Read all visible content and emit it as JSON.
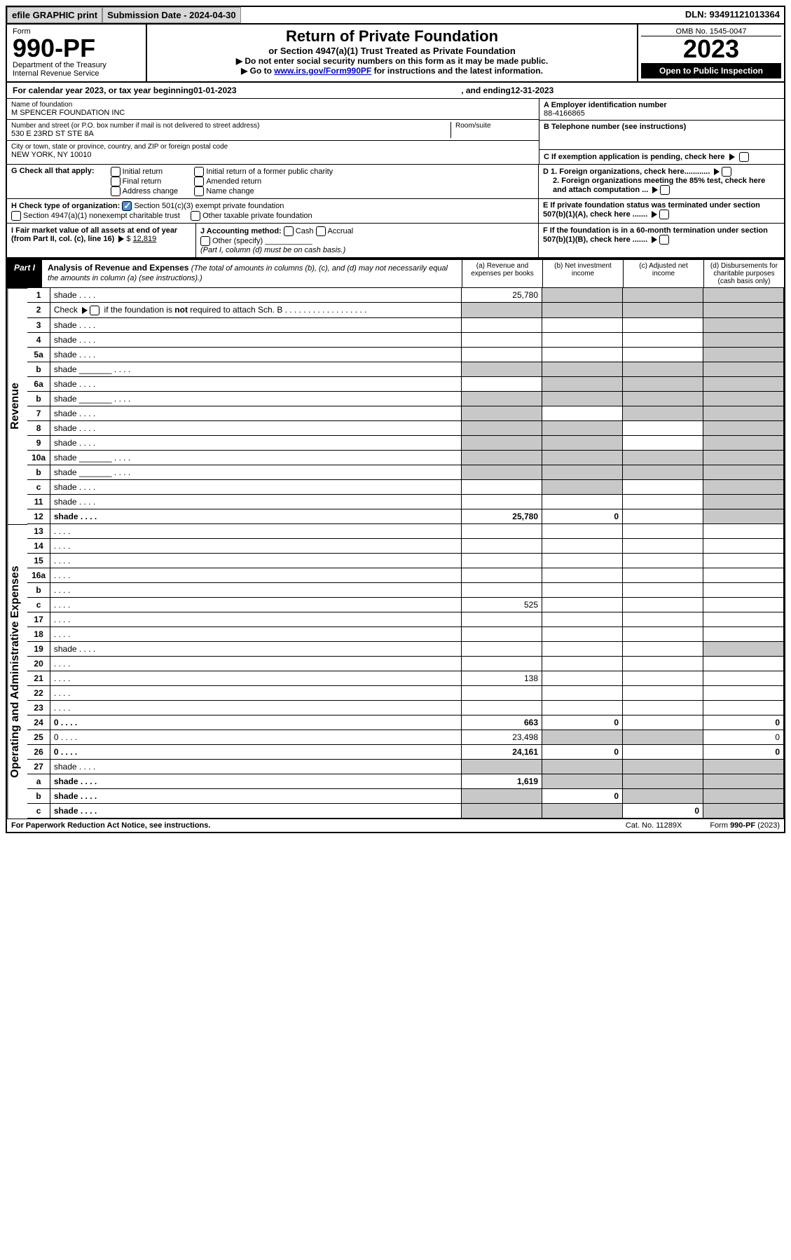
{
  "topbar": {
    "efile": "efile GRAPHIC print",
    "submission_label": "Submission Date - 2024-04-30",
    "dln": "DLN: 93491121013364"
  },
  "head": {
    "form_word": "Form",
    "form_no": "990-PF",
    "dept": "Department of the Treasury",
    "irs": "Internal Revenue Service",
    "title": "Return of Private Foundation",
    "subtitle": "or Section 4947(a)(1) Trust Treated as Private Foundation",
    "instr1": "▶ Do not enter social security numbers on this form as it may be made public.",
    "instr2_pre": "▶ Go to ",
    "instr2_link": "www.irs.gov/Form990PF",
    "instr2_post": " for instructions and the latest information.",
    "omb": "OMB No. 1545-0047",
    "year": "2023",
    "open": "Open to Public Inspection"
  },
  "calendar": {
    "pre": "For calendar year 2023, or tax year beginning ",
    "begin": "01-01-2023",
    "mid": ", and ending ",
    "end": "12-31-2023"
  },
  "entity": {
    "name_label": "Name of foundation",
    "name": "M SPENCER FOUNDATION INC",
    "addr_label": "Number and street (or P.O. box number if mail is not delivered to street address)",
    "addr": "530 E 23RD ST STE 8A",
    "room_label": "Room/suite",
    "city_label": "City or town, state or province, country, and ZIP or foreign postal code",
    "city": "NEW YORK, NY  10010",
    "A_label": "A Employer identification number",
    "A_val": "88-4166865",
    "B_label": "B Telephone number (see instructions)",
    "C_label": "C If exemption application is pending, check here",
    "D1_label": "D 1. Foreign organizations, check here............",
    "D2_label": "2. Foreign organizations meeting the 85% test, check here and attach computation ...",
    "E_label": "E  If private foundation status was terminated under section 507(b)(1)(A), check here .......",
    "F_label": "F  If the foundation is in a 60-month termination under section 507(b)(1)(B), check here .......",
    "G_label": "G Check all that apply:",
    "G_opts": [
      "Initial return",
      "Final return",
      "Address change",
      "Initial return of a former public charity",
      "Amended return",
      "Name change"
    ],
    "H_label": "H Check type of organization:",
    "H_opts": [
      "Section 501(c)(3) exempt private foundation",
      "Section 4947(a)(1) nonexempt charitable trust",
      "Other taxable private foundation"
    ],
    "I_label": "I Fair market value of all assets at end of year (from Part II, col. (c), line 16)",
    "I_val": "12,819",
    "J_label": "J Accounting method:",
    "J_opts": [
      "Cash",
      "Accrual",
      "Other (specify)"
    ],
    "J_note": "(Part I, column (d) must be on cash basis.)"
  },
  "part1": {
    "tag": "Part I",
    "title": "Analysis of Revenue and Expenses",
    "sub": "(The total of amounts in columns (b), (c), and (d) may not necessarily equal the amounts in column (a) (see instructions).)",
    "cols": {
      "a": "(a)   Revenue and expenses per books",
      "b": "(b)   Net investment income",
      "c": "(c)   Adjusted net income",
      "d": "(d)   Disbursements for charitable purposes (cash basis only)"
    }
  },
  "sections": {
    "revenue": "Revenue",
    "opex": "Operating and Administrative Expenses"
  },
  "rows": [
    {
      "n": "1",
      "d": "shade",
      "a": "25,780",
      "b": "shade",
      "c": "shade"
    },
    {
      "n": "2",
      "d": "shade",
      "a": "shade",
      "b": "shade",
      "c": "shade",
      "html": true
    },
    {
      "n": "3",
      "d": "shade",
      "a": "",
      "b": "",
      "c": ""
    },
    {
      "n": "4",
      "d": "shade",
      "a": "",
      "b": "",
      "c": ""
    },
    {
      "n": "5a",
      "d": "shade",
      "a": "",
      "b": "",
      "c": ""
    },
    {
      "n": "b",
      "d": "shade",
      "a": "shade",
      "b": "shade",
      "c": "shade",
      "inset": true
    },
    {
      "n": "6a",
      "d": "shade",
      "a": "",
      "b": "shade",
      "c": "shade"
    },
    {
      "n": "b",
      "d": "shade",
      "a": "shade",
      "b": "shade",
      "c": "shade",
      "inset": true
    },
    {
      "n": "7",
      "d": "shade",
      "a": "shade",
      "b": "",
      "c": "shade"
    },
    {
      "n": "8",
      "d": "shade",
      "a": "shade",
      "b": "shade",
      "c": ""
    },
    {
      "n": "9",
      "d": "shade",
      "a": "shade",
      "b": "shade",
      "c": ""
    },
    {
      "n": "10a",
      "d": "shade",
      "a": "shade",
      "b": "shade",
      "c": "shade",
      "inset": true
    },
    {
      "n": "b",
      "d": "shade",
      "a": "shade",
      "b": "shade",
      "c": "shade",
      "inset": true
    },
    {
      "n": "c",
      "d": "shade",
      "a": "",
      "b": "shade",
      "c": ""
    },
    {
      "n": "11",
      "d": "shade",
      "a": "",
      "b": "",
      "c": ""
    },
    {
      "n": "12",
      "d": "shade",
      "a": "25,780",
      "b": "0",
      "c": "",
      "bold": true
    }
  ],
  "rows2": [
    {
      "n": "13",
      "d": "",
      "a": "",
      "b": "",
      "c": ""
    },
    {
      "n": "14",
      "d": "",
      "a": "",
      "b": "",
      "c": ""
    },
    {
      "n": "15",
      "d": "",
      "a": "",
      "b": "",
      "c": ""
    },
    {
      "n": "16a",
      "d": "",
      "a": "",
      "b": "",
      "c": ""
    },
    {
      "n": "b",
      "d": "",
      "a": "",
      "b": "",
      "c": ""
    },
    {
      "n": "c",
      "d": "",
      "a": "525",
      "b": "",
      "c": ""
    },
    {
      "n": "17",
      "d": "",
      "a": "",
      "b": "",
      "c": ""
    },
    {
      "n": "18",
      "d": "",
      "a": "",
      "b": "",
      "c": ""
    },
    {
      "n": "19",
      "d": "shade",
      "a": "",
      "b": "",
      "c": ""
    },
    {
      "n": "20",
      "d": "",
      "a": "",
      "b": "",
      "c": ""
    },
    {
      "n": "21",
      "d": "",
      "a": "138",
      "b": "",
      "c": ""
    },
    {
      "n": "22",
      "d": "",
      "a": "",
      "b": "",
      "c": ""
    },
    {
      "n": "23",
      "d": "",
      "a": "",
      "b": "",
      "c": ""
    },
    {
      "n": "24",
      "d": "0",
      "a": "663",
      "b": "0",
      "c": "",
      "bold": true
    },
    {
      "n": "25",
      "d": "0",
      "a": "23,498",
      "b": "shade",
      "c": "shade"
    },
    {
      "n": "26",
      "d": "0",
      "a": "24,161",
      "b": "0",
      "c": "",
      "bold": true
    },
    {
      "n": "27",
      "d": "shade",
      "a": "shade",
      "b": "shade",
      "c": "shade"
    },
    {
      "n": "a",
      "d": "shade",
      "a": "1,619",
      "b": "shade",
      "c": "shade",
      "bold": true
    },
    {
      "n": "b",
      "d": "shade",
      "a": "shade",
      "b": "0",
      "c": "shade",
      "bold": true
    },
    {
      "n": "c",
      "d": "shade",
      "a": "shade",
      "b": "shade",
      "c": "0",
      "bold": true
    }
  ],
  "footer": {
    "left": "For Paperwork Reduction Act Notice, see instructions.",
    "mid": "Cat. No. 11289X",
    "right": "Form 990-PF (2023)"
  },
  "colors": {
    "shade": "#c8c8c8",
    "link": "#0000cc",
    "check": "#4a90d9"
  }
}
